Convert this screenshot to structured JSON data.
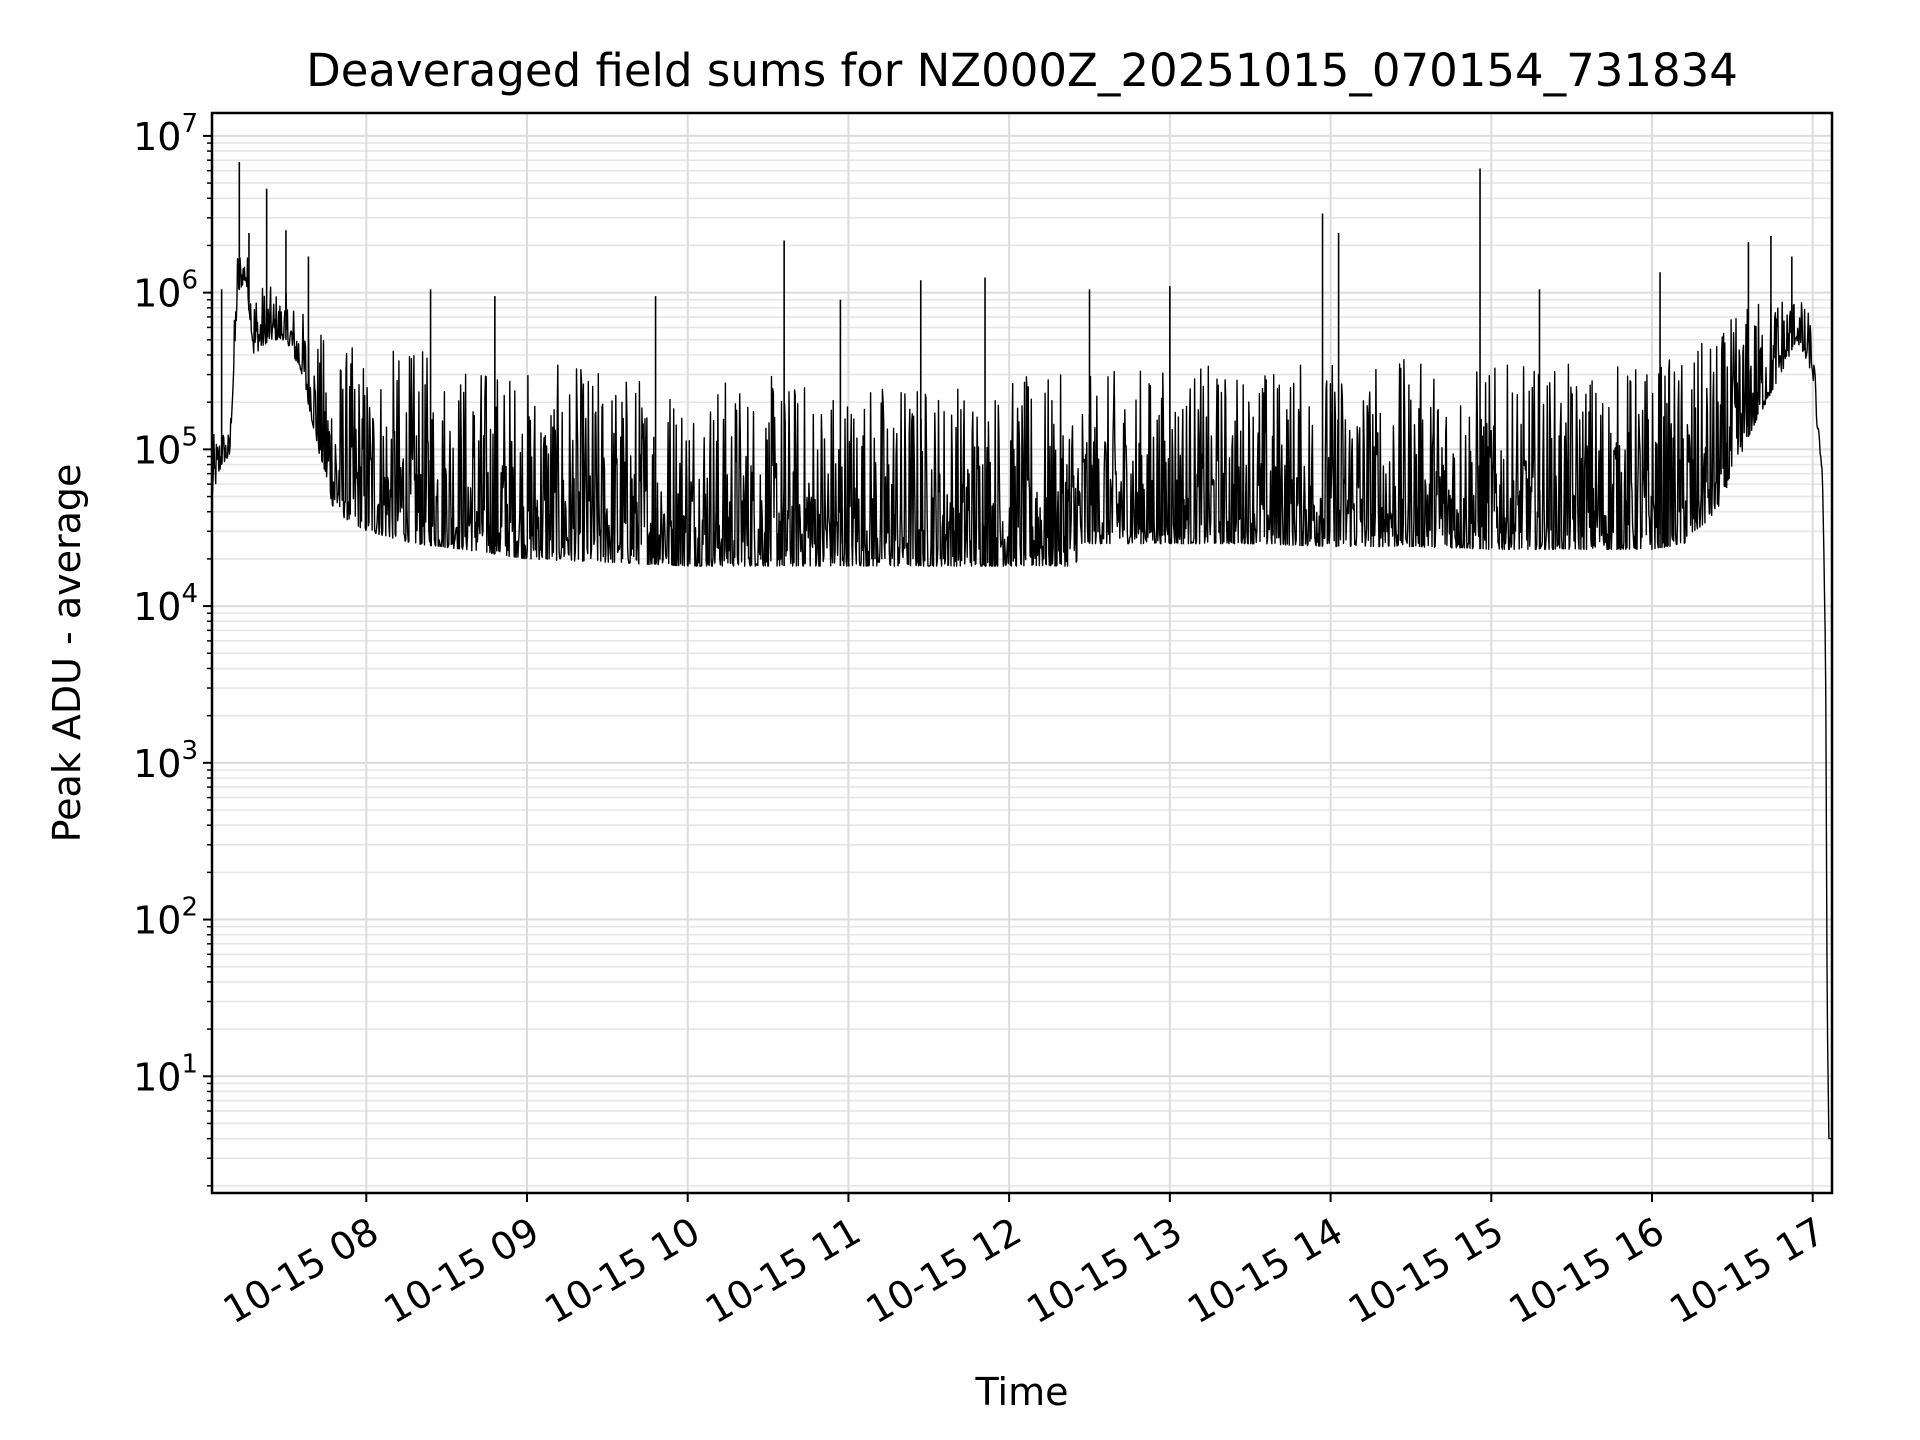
{
  "chart_data": {
    "type": "line",
    "title": "Deaveraged field sums for NZ000Z_20251015_070154_731834",
    "xlabel": "Time",
    "ylabel": "Peak ADU - average",
    "yscale": "log",
    "ylim": [
      1.8,
      14000000
    ],
    "xlim_hours": [
      7.04,
      17.12
    ],
    "grid": true,
    "legend": "none",
    "x_ticks": [
      {
        "label": "10-15 08",
        "hour": 8
      },
      {
        "label": "10-15 09",
        "hour": 9
      },
      {
        "label": "10-15 10",
        "hour": 10
      },
      {
        "label": "10-15 11",
        "hour": 11
      },
      {
        "label": "10-15 12",
        "hour": 12
      },
      {
        "label": "10-15 13",
        "hour": 13
      },
      {
        "label": "10-15 14",
        "hour": 14
      },
      {
        "label": "10-15 15",
        "hour": 15
      },
      {
        "label": "10-15 16",
        "hour": 16
      },
      {
        "label": "10-15 17",
        "hour": 17
      }
    ],
    "y_ticks": [
      {
        "base": "10",
        "exp": "1",
        "value": 10
      },
      {
        "base": "10",
        "exp": "2",
        "value": 100
      },
      {
        "base": "10",
        "exp": "3",
        "value": 1000
      },
      {
        "base": "10",
        "exp": "4",
        "value": 10000
      },
      {
        "base": "10",
        "exp": "5",
        "value": 100000
      },
      {
        "base": "10",
        "exp": "6",
        "value": 1000000
      },
      {
        "base": "10",
        "exp": "7",
        "value": 10000000
      }
    ],
    "series": [
      {
        "name": "Peak ADU - average",
        "color": "#000000",
        "envelope": {
          "x_hours": [
            7.04,
            7.1,
            7.15,
            7.2,
            7.25,
            7.3,
            7.4,
            7.5,
            7.6,
            7.7,
            7.8,
            8.0,
            8.3,
            8.6,
            9.0,
            9.5,
            10.0,
            10.5,
            11.0,
            11.5,
            12.0,
            12.4,
            12.5,
            12.8,
            13.0,
            13.5,
            14.0,
            14.5,
            15.0,
            15.5,
            16.0,
            16.2,
            16.4,
            16.6,
            16.8,
            16.9,
            17.0,
            17.03,
            17.06,
            17.08,
            17.09,
            17.1,
            17.12
          ],
          "low": [
            50000,
            80000,
            90000,
            1000000,
            1200000,
            400000,
            500000,
            500000,
            300000,
            100000,
            40000,
            30000,
            25000,
            23000,
            20000,
            19000,
            18000,
            18000,
            18000,
            18000,
            18000,
            18000,
            25000,
            25000,
            25000,
            25000,
            24000,
            24000,
            23000,
            23000,
            23000,
            25000,
            40000,
            120000,
            300000,
            500000,
            300000,
            130000,
            70000,
            5000,
            30,
            4,
            4
          ],
          "high": [
            120000,
            150000,
            130000,
            2200000,
            2000000,
            1300000,
            1100000,
            1000000,
            800000,
            600000,
            500000,
            450000,
            450000,
            400000,
            350000,
            350000,
            320000,
            300000,
            300000,
            300000,
            300000,
            300000,
            300000,
            350000,
            350000,
            350000,
            400000,
            380000,
            350000,
            350000,
            380000,
            420000,
            550000,
            900000,
            1100000,
            1000000,
            700000,
            150000,
            90000,
            5000,
            30,
            4,
            4
          ]
        },
        "spikes": [
          {
            "hour": 7.21,
            "value": 6800000
          },
          {
            "hour": 7.38,
            "value": 4600000
          },
          {
            "hour": 7.5,
            "value": 2500000
          },
          {
            "hour": 7.27,
            "value": 2400000
          },
          {
            "hour": 7.1,
            "value": 1050000
          },
          {
            "hour": 7.64,
            "value": 1700000
          },
          {
            "hour": 8.4,
            "value": 1050000
          },
          {
            "hour": 8.8,
            "value": 950000
          },
          {
            "hour": 9.8,
            "value": 950000
          },
          {
            "hour": 10.6,
            "value": 2150000
          },
          {
            "hour": 10.95,
            "value": 900000
          },
          {
            "hour": 11.45,
            "value": 1200000
          },
          {
            "hour": 11.85,
            "value": 1250000
          },
          {
            "hour": 12.5,
            "value": 1050000
          },
          {
            "hour": 13.0,
            "value": 1100000
          },
          {
            "hour": 13.95,
            "value": 3200000
          },
          {
            "hour": 14.05,
            "value": 2400000
          },
          {
            "hour": 14.93,
            "value": 6200000
          },
          {
            "hour": 15.3,
            "value": 1050000
          },
          {
            "hour": 16.05,
            "value": 1350000
          },
          {
            "hour": 16.6,
            "value": 2100000
          },
          {
            "hour": 16.74,
            "value": 2300000
          },
          {
            "hour": 16.87,
            "value": 1700000
          }
        ]
      }
    ]
  }
}
